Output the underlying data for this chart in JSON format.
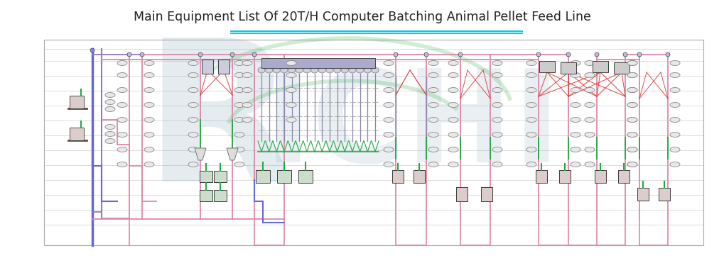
{
  "title": "Main Equipment List Of 20T/H Computer Batching Animal Pellet Feed Line",
  "title_fontsize": 12.5,
  "title_color": "#222222",
  "bg_color": "#ffffff",
  "underline_color": "#00ccee",
  "grid_color": "#c8c8c8",
  "border_color": "#aaaaaa",
  "blue_color": "#6666dd",
  "purple_color": "#9977bb",
  "pink_color": "#dd88aa",
  "red_color": "#dd3333",
  "green_color": "#22aa44",
  "gray_color": "#888888",
  "dark_color": "#333333",
  "richi_blue": "#8aaabb",
  "richi_green": "#55bb66"
}
